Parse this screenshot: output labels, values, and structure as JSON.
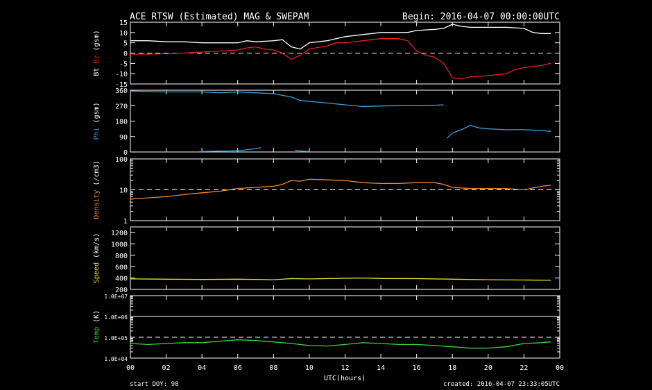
{
  "header": {
    "title": "ACE RTSW (Estimated) MAG & SWEPAM",
    "begin": "Begin: 2016-04-07 00:00:00UTC"
  },
  "footer": {
    "start_doy": "start DOY:  98",
    "created": "created: 2016-04-07 23:33:05UTC"
  },
  "chart_data": {
    "type": "line",
    "x_axis": {
      "label": "UTC(hours)",
      "range": [
        0,
        24
      ],
      "tick_labels": [
        "00",
        "02",
        "04",
        "06",
        "08",
        "10",
        "12",
        "14",
        "16",
        "18",
        "20",
        "22",
        "00"
      ]
    },
    "panels": [
      {
        "id": "mag",
        "ylabel_parts": [
          {
            "text": "Bt",
            "color": "#ffffff"
          },
          {
            "text": " Bz",
            "color": "#e8201e"
          },
          {
            "text": " (gsm)",
            "color": "#ffffff"
          }
        ],
        "ylim": [
          -15,
          15
        ],
        "scale": "linear",
        "ticks": [
          -15,
          -10,
          -5,
          0,
          5,
          10,
          15
        ],
        "tick_labels": [
          "-15",
          "-10",
          "-5",
          "0",
          "5",
          "10",
          "15"
        ],
        "dashed_lines": [
          0
        ],
        "series": [
          {
            "color": "#ffffff",
            "points": [
              [
                0,
                6
              ],
              [
                1,
                6
              ],
              [
                2,
                5.5
              ],
              [
                3,
                5.5
              ],
              [
                4,
                5
              ],
              [
                5,
                5
              ],
              [
                6,
                5
              ],
              [
                6.5,
                6
              ],
              [
                7,
                5.5
              ],
              [
                8,
                6
              ],
              [
                8.5,
                6.5
              ],
              [
                9,
                3
              ],
              [
                9.5,
                2
              ],
              [
                10,
                5
              ],
              [
                11,
                6
              ],
              [
                11.5,
                7
              ],
              [
                12,
                8
              ],
              [
                13,
                9
              ],
              [
                14,
                10
              ],
              [
                15,
                10
              ],
              [
                15.5,
                10
              ],
              [
                16,
                11
              ],
              [
                17,
                11.5
              ],
              [
                17.5,
                12
              ],
              [
                18,
                14
              ],
              [
                18.5,
                13
              ],
              [
                19,
                12.5
              ],
              [
                20,
                12.5
              ],
              [
                21,
                12.5
              ],
              [
                22,
                12
              ],
              [
                22.5,
                10
              ],
              [
                23,
                9.5
              ],
              [
                23.5,
                9.5
              ]
            ]
          },
          {
            "color": "#e8201e",
            "points": [
              [
                0,
                -0.5
              ],
              [
                1,
                -0.5
              ],
              [
                2,
                -0.3
              ],
              [
                3,
                0
              ],
              [
                4,
                0.5
              ],
              [
                5,
                1
              ],
              [
                6,
                1.5
              ],
              [
                6.5,
                2.5
              ],
              [
                7,
                3
              ],
              [
                7.5,
                2
              ],
              [
                8,
                1.5
              ],
              [
                8.5,
                0
              ],
              [
                9,
                -3
              ],
              [
                9.5,
                -1
              ],
              [
                10,
                2
              ],
              [
                11,
                3.5
              ],
              [
                11.5,
                5
              ],
              [
                12,
                5
              ],
              [
                13,
                6
              ],
              [
                14,
                7
              ],
              [
                15,
                7
              ],
              [
                15.5,
                6
              ],
              [
                16,
                1
              ],
              [
                16.5,
                -1
              ],
              [
                17,
                -2
              ],
              [
                17.5,
                -5
              ],
              [
                18,
                -12
              ],
              [
                18.5,
                -12.5
              ],
              [
                19,
                -11.5
              ],
              [
                20,
                -11
              ],
              [
                21,
                -10
              ],
              [
                21.5,
                -8
              ],
              [
                22,
                -7
              ],
              [
                23,
                -6
              ],
              [
                23.5,
                -5
              ]
            ]
          }
        ]
      },
      {
        "id": "phi",
        "ylabel_parts": [
          {
            "text": "Phi",
            "color": "#3aa3dd"
          },
          {
            "text": " (gsm)",
            "color": "#ffffff"
          }
        ],
        "ylim": [
          0,
          360
        ],
        "scale": "linear",
        "ticks": [
          0,
          90,
          180,
          270,
          360
        ],
        "tick_labels": [
          "0",
          "90",
          "180",
          "270",
          "360"
        ],
        "dashed_lines": [],
        "series": [
          {
            "color": "#3aa3dd",
            "points": [
              [
                0,
                355
              ],
              [
                2,
                350
              ],
              [
                4,
                350
              ],
              [
                5,
                345
              ],
              [
                6,
                350
              ],
              [
                7,
                345
              ],
              [
                8,
                340
              ],
              [
                8.5,
                330
              ],
              [
                9,
                320
              ],
              [
                9.5,
                300
              ],
              [
                10,
                295
              ],
              [
                11,
                285
              ],
              [
                12,
                275
              ],
              [
                13,
                265
              ],
              [
                14,
                268
              ],
              [
                15,
                270
              ],
              [
                16,
                270
              ],
              [
                17,
                272
              ],
              [
                17.5,
                275
              ]
            ]
          },
          {
            "color": "#3aa3dd",
            "points": [
              [
                3.8,
                2
              ],
              [
                4.5,
                4
              ],
              [
                5.5,
                6
              ],
              [
                6.3,
                10
              ],
              [
                7,
                20
              ],
              [
                7.3,
                25
              ]
            ]
          },
          {
            "color": "#3aa3dd",
            "points": [
              [
                9.2,
                10
              ],
              [
                9.6,
                5
              ],
              [
                10,
                3
              ]
            ]
          },
          {
            "color": "#3aa3dd",
            "points": [
              [
                17.7,
                80
              ],
              [
                18,
                110
              ],
              [
                18.5,
                130
              ],
              [
                19,
                155
              ],
              [
                19.5,
                140
              ],
              [
                20,
                135
              ],
              [
                21,
                130
              ],
              [
                22,
                130
              ],
              [
                23,
                125
              ],
              [
                23.5,
                120
              ]
            ]
          }
        ]
      },
      {
        "id": "density",
        "ylabel_parts": [
          {
            "text": "Density",
            "color": "#f08a2c"
          },
          {
            "text": " (/cm3)",
            "color": "#ffffff"
          }
        ],
        "ylim": [
          1,
          100
        ],
        "scale": "log",
        "ticks": [
          1,
          10,
          100
        ],
        "tick_labels": [
          "1",
          "10",
          "100"
        ],
        "dashed_lines": [
          10
        ],
        "series": [
          {
            "color": "#f08a2c",
            "points": [
              [
                0,
                5
              ],
              [
                1,
                5.5
              ],
              [
                2,
                6
              ],
              [
                3,
                7
              ],
              [
                4,
                8
              ],
              [
                5,
                9
              ],
              [
                6,
                11
              ],
              [
                7,
                12
              ],
              [
                8,
                13
              ],
              [
                8.5,
                15
              ],
              [
                9,
                20
              ],
              [
                9.5,
                19
              ],
              [
                10,
                22
              ],
              [
                11,
                21
              ],
              [
                12,
                20
              ],
              [
                13,
                17
              ],
              [
                14,
                16
              ],
              [
                15,
                16
              ],
              [
                16,
                17
              ],
              [
                17,
                17
              ],
              [
                17.5,
                15
              ],
              [
                18,
                12
              ],
              [
                19,
                11
              ],
              [
                20,
                11
              ],
              [
                21,
                11
              ],
              [
                22,
                10
              ],
              [
                23,
                13
              ],
              [
                23.5,
                14
              ]
            ]
          }
        ]
      },
      {
        "id": "speed",
        "ylabel_parts": [
          {
            "text": "Speed",
            "color": "#f0e030"
          },
          {
            "text": " (km/s)",
            "color": "#ffffff"
          }
        ],
        "ylim": [
          200,
          1300
        ],
        "scale": "linear",
        "ticks": [
          200,
          400,
          600,
          800,
          1000,
          1200
        ],
        "tick_labels": [
          "200",
          "400",
          "600",
          "800",
          "1000",
          "1200"
        ],
        "dashed_lines": [],
        "series": [
          {
            "color": "#f0e030",
            "points": [
              [
                0,
                385
              ],
              [
                2,
                380
              ],
              [
                4,
                375
              ],
              [
                6,
                380
              ],
              [
                8,
                370
              ],
              [
                9,
                390
              ],
              [
                10,
                385
              ],
              [
                12,
                395
              ],
              [
                13,
                400
              ],
              [
                14,
                392
              ],
              [
                16,
                390
              ],
              [
                18,
                380
              ],
              [
                20,
                370
              ],
              [
                22,
                365
              ],
              [
                23.5,
                360
              ]
            ]
          }
        ]
      },
      {
        "id": "temp",
        "ylabel_parts": [
          {
            "text": "Temp",
            "color": "#3ed43e"
          },
          {
            "text": " (K)",
            "color": "#ffffff"
          }
        ],
        "ylim": [
          10000,
          10000000
        ],
        "scale": "log",
        "ticks": [
          10000,
          100000,
          1000000,
          10000000
        ],
        "tick_labels": [
          "1.0E+04",
          "1.0E+05",
          "1.0E+06",
          "1.0E+07"
        ],
        "dashed_lines": [
          100000
        ],
        "solid_lines": [
          1000000
        ],
        "series": [
          {
            "color": "#3ed43e",
            "points": [
              [
                0,
                50000
              ],
              [
                1,
                45000
              ],
              [
                2,
                50000
              ],
              [
                3,
                55000
              ],
              [
                4,
                55000
              ],
              [
                5,
                65000
              ],
              [
                6,
                75000
              ],
              [
                7,
                70000
              ],
              [
                8,
                60000
              ],
              [
                9,
                50000
              ],
              [
                10,
                40000
              ],
              [
                11,
                38000
              ],
              [
                12,
                45000
              ],
              [
                13,
                55000
              ],
              [
                14,
                50000
              ],
              [
                15,
                45000
              ],
              [
                16,
                45000
              ],
              [
                17,
                40000
              ],
              [
                18,
                35000
              ],
              [
                19,
                30000
              ],
              [
                20,
                30000
              ],
              [
                21,
                35000
              ],
              [
                22,
                50000
              ],
              [
                23,
                55000
              ],
              [
                23.5,
                60000
              ]
            ]
          }
        ]
      }
    ]
  }
}
